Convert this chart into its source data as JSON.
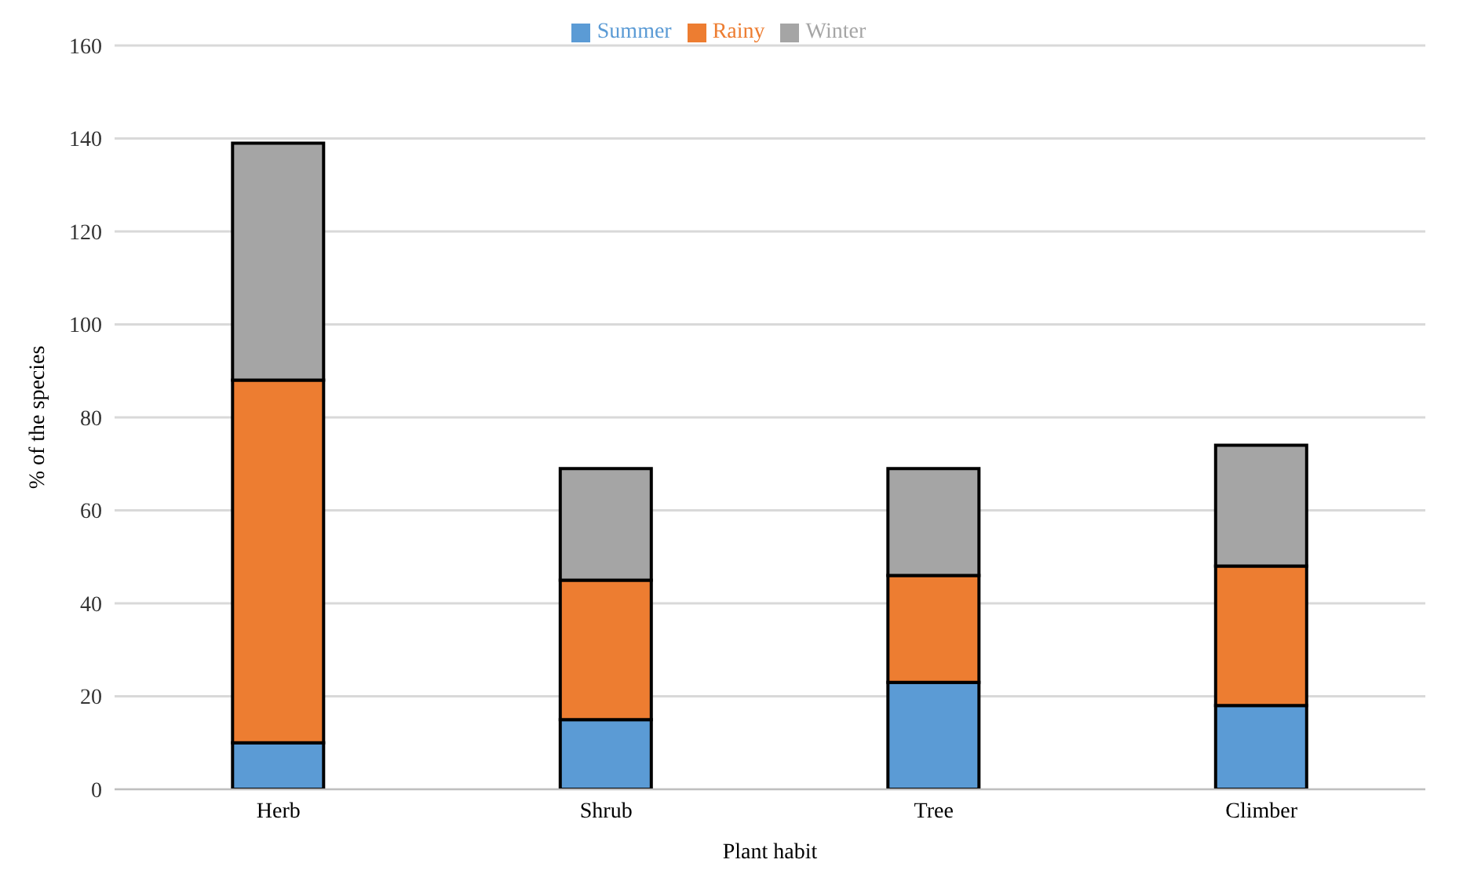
{
  "chart_data": {
    "type": "bar",
    "stacked": true,
    "xlabel": "Plant habit",
    "ylabel": "% of the species",
    "categories": [
      "Herb",
      "Shrub",
      "Tree",
      "Climber"
    ],
    "series": [
      {
        "name": "Summer",
        "color": "#5b9bd5",
        "values": [
          10,
          15,
          23,
          18
        ]
      },
      {
        "name": "Rainy",
        "color": "#ed7d31",
        "values": [
          78,
          30,
          23,
          30
        ]
      },
      {
        "name": "Winter",
        "color": "#a5a5a5",
        "values": [
          51,
          24,
          23,
          26
        ]
      }
    ],
    "ylim": [
      0,
      160
    ],
    "yticks": [
      0,
      20,
      40,
      60,
      80,
      100,
      120,
      140,
      160
    ],
    "grid": "y",
    "legend": "top"
  }
}
